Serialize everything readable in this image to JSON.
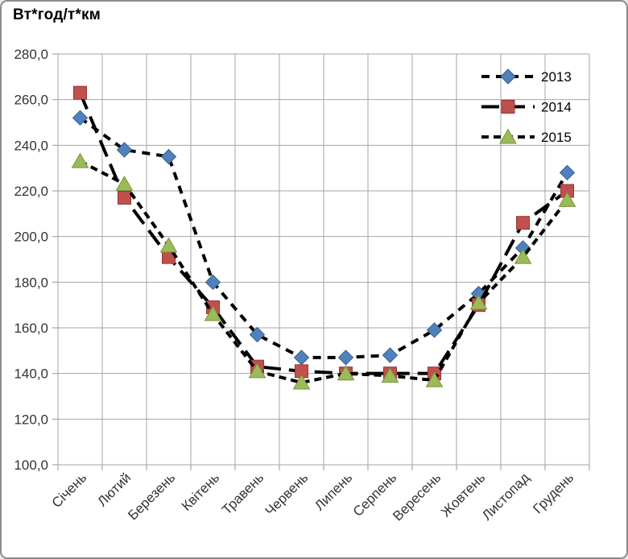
{
  "chart_data": {
    "type": "line",
    "title": "Вт*год/т*км",
    "categories": [
      "Січень",
      "Лютий",
      "Березень",
      "Квітень",
      "Травень",
      "Червень",
      "Липень",
      "Серпень",
      "Вересень",
      "Жовтень",
      "Листопад",
      "Грудень"
    ],
    "series": [
      {
        "name": "2013",
        "marker": "diamond",
        "marker_color": "#4f81bd",
        "marker_edge": "#39618f",
        "line_color": "#000000",
        "dash": "10 8",
        "values": [
          252,
          238,
          235,
          180,
          157,
          147,
          147,
          148,
          159,
          175,
          195,
          228
        ]
      },
      {
        "name": "2014",
        "marker": "square",
        "marker_color": "#c0504d",
        "marker_edge": "#953735",
        "line_color": "#000000",
        "dash": "22 10",
        "values": [
          263,
          217,
          191,
          169,
          143,
          141,
          140,
          140,
          140,
          170,
          206,
          220
        ]
      },
      {
        "name": "2015",
        "marker": "triangle",
        "marker_color": "#9bbb59",
        "marker_edge": "#77933c",
        "line_color": "#000000",
        "dash": "9 6",
        "values": [
          233,
          223,
          196,
          166,
          141,
          136,
          140,
          139,
          137,
          171,
          191,
          216
        ]
      }
    ],
    "ylim": [
      100,
      280
    ],
    "ytick_step": 20,
    "ytick_labels": [
      "100,0",
      "120,0",
      "140,0",
      "160,0",
      "180,0",
      "200,0",
      "220,0",
      "240,0",
      "260,0",
      "280,0"
    ],
    "xlabel": "",
    "ylabel": "",
    "grid": true,
    "gridline_color": "#a6a6a6",
    "axis_text_color": "#333333",
    "legend_position": "top-right",
    "legend_entries": [
      "2013",
      "2014",
      "2015"
    ]
  }
}
